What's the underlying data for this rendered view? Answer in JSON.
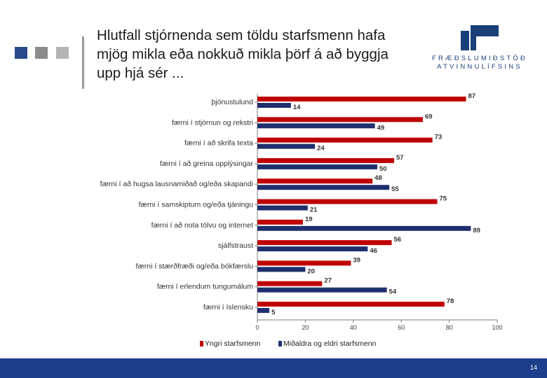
{
  "slide": {
    "title": "Hlutfall stjórnenda sem töldu starfsmenn hafa mjög mikla eða nokkuð mikla þörf á að byggja upp hjá sér  ...",
    "logo_line1": "FRÆÐSLUMIÐSTÖÐ",
    "logo_line2": "ATVINNULÍFSINS",
    "page_number": "14",
    "colors": {
      "footer": "#1b3f8a",
      "deco_square_1": "#2b4a8c",
      "deco_square_2": "#8c8c8c",
      "deco_square_3": "#b4b4b4"
    }
  },
  "chart_data": {
    "type": "bar",
    "orientation": "horizontal",
    "categories": [
      "þjónustulund",
      "færni í stjórnun og rekstri",
      "færni í að skrifa texta",
      "færni í að greina upplýsingar",
      "færni í að hugsa lausnamiðað og/eða skapandi",
      "færni í samskiptum og/eða tjáningu",
      "færni í að nota tölvu og internet",
      "sjálfstraust",
      "færni í stærðfræði og/eða bókfærslu",
      "færni í erlendum tungumálum",
      "færni í íslensku"
    ],
    "series": [
      {
        "name": "Yngri starfsmenn",
        "color": "#c00000",
        "values": [
          87,
          69,
          73,
          57,
          48,
          75,
          19,
          56,
          39,
          27,
          78
        ]
      },
      {
        "name": "Miðaldra og eldri starfsmenn",
        "color": "#1f2f6e",
        "values": [
          14,
          49,
          24,
          50,
          55,
          21,
          89,
          46,
          20,
          54,
          5
        ]
      }
    ],
    "xlim": [
      0,
      100
    ],
    "xticks": [
      0,
      20,
      40,
      60,
      80,
      100
    ],
    "grid": false,
    "legend_position": "bottom"
  }
}
